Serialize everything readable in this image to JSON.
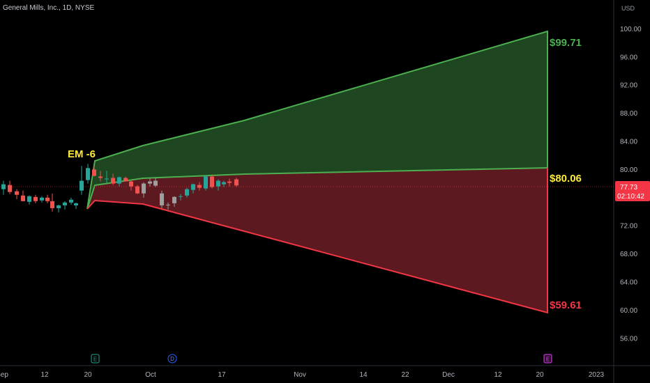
{
  "header": {
    "title": "General Mills, Inc., 1D, NYSE",
    "currency": "USD"
  },
  "price_label": {
    "value": "77.73",
    "countdown": "02:10:42",
    "color": "#f23645"
  },
  "annotations": {
    "em": "EM -6",
    "upper": "$99.71",
    "middle": "$80.06",
    "lower": "$59.61"
  },
  "colors": {
    "upper_zone": "#1e4620",
    "upper_line": "#4caf50",
    "lower_zone": "#5c1a20",
    "lower_line": "#f23645",
    "mid_label": "#ffeb3b",
    "up_candle": "#26a69a",
    "down_candle": "#ef5350",
    "flat_candle": "#9e9e9e"
  },
  "chart_data": {
    "type": "candlestick",
    "title": "General Mills, Inc., 1D, NYSE",
    "ylabel": "USD",
    "ylim": [
      52,
      104
    ],
    "y_ticks": [
      "100.00",
      "96.00",
      "92.00",
      "88.00",
      "84.00",
      "80.00",
      "76.00",
      "72.00",
      "68.00",
      "64.00",
      "60.00",
      "56.00"
    ],
    "x_ticks": [
      "Sep",
      "12",
      "20",
      "Oct",
      "17",
      "Nov",
      "14",
      "22",
      "Dec",
      "12",
      "20",
      "2023"
    ],
    "events": [
      "E",
      "D",
      "E"
    ],
    "last_price": 77.73,
    "candles": [
      {
        "o": 77.2,
        "h": 78.4,
        "l": 76.4,
        "c": 77.9
      },
      {
        "o": 77.8,
        "h": 78.4,
        "l": 76.5,
        "c": 76.8
      },
      {
        "o": 76.9,
        "h": 77.2,
        "l": 75.8,
        "c": 76.4
      },
      {
        "o": 76.3,
        "h": 77.0,
        "l": 75.5,
        "c": 75.5
      },
      {
        "o": 75.4,
        "h": 76.3,
        "l": 75.0,
        "c": 76.2
      },
      {
        "o": 76.1,
        "h": 76.4,
        "l": 75.2,
        "c": 75.5
      },
      {
        "o": 75.6,
        "h": 76.2,
        "l": 75.3,
        "c": 76.0
      },
      {
        "o": 76.0,
        "h": 76.4,
        "l": 75.2,
        "c": 75.5
      },
      {
        "o": 75.5,
        "h": 76.6,
        "l": 74.0,
        "c": 74.5
      },
      {
        "o": 74.5,
        "h": 75.0,
        "l": 73.9,
        "c": 74.9
      },
      {
        "o": 74.9,
        "h": 75.5,
        "l": 74.3,
        "c": 75.3
      },
      {
        "o": 75.3,
        "h": 76.0,
        "l": 75.0,
        "c": 75.7
      },
      {
        "o": 74.9,
        "h": 75.3,
        "l": 74.4,
        "c": 75.2
      },
      {
        "o": 77.0,
        "h": 80.5,
        "l": 76.4,
        "c": 78.4
      },
      {
        "o": 78.5,
        "h": 80.8,
        "l": 78.0,
        "c": 80.2
      },
      {
        "o": 80.0,
        "h": 80.5,
        "l": 79.0,
        "c": 79.1
      },
      {
        "o": 79.0,
        "h": 79.8,
        "l": 78.3,
        "c": 78.8
      },
      {
        "o": 78.7,
        "h": 79.8,
        "l": 78.1,
        "c": 78.7
      },
      {
        "o": 78.8,
        "h": 79.4,
        "l": 77.8,
        "c": 78.0
      },
      {
        "o": 78.0,
        "h": 79.0,
        "l": 77.6,
        "c": 78.9
      },
      {
        "o": 78.8,
        "h": 79.0,
        "l": 78.3,
        "c": 78.3
      },
      {
        "o": 78.3,
        "h": 78.5,
        "l": 77.0,
        "c": 77.6
      },
      {
        "o": 77.6,
        "h": 77.8,
        "l": 76.5,
        "c": 76.6
      },
      {
        "o": 76.6,
        "h": 78.2,
        "l": 76.0,
        "c": 78.0
      },
      {
        "o": 78.0,
        "h": 78.7,
        "l": 77.6,
        "c": 78.3
      },
      {
        "o": 78.4,
        "h": 78.8,
        "l": 77.5,
        "c": 77.7
      },
      {
        "o": 76.6,
        "h": 77.0,
        "l": 74.5,
        "c": 74.9
      },
      {
        "o": 74.9,
        "h": 75.3,
        "l": 74.3,
        "c": 75.0
      },
      {
        "o": 75.2,
        "h": 76.2,
        "l": 74.7,
        "c": 76.1
      },
      {
        "o": 76.2,
        "h": 76.5,
        "l": 75.6,
        "c": 76.2
      },
      {
        "o": 76.3,
        "h": 77.4,
        "l": 76.0,
        "c": 77.2
      },
      {
        "o": 77.1,
        "h": 78.0,
        "l": 76.6,
        "c": 77.9
      },
      {
        "o": 77.8,
        "h": 78.2,
        "l": 77.0,
        "c": 77.4
      },
      {
        "o": 77.3,
        "h": 79.2,
        "l": 77.0,
        "c": 79.0
      },
      {
        "o": 79.0,
        "h": 79.3,
        "l": 77.3,
        "c": 77.5
      },
      {
        "o": 77.6,
        "h": 78.6,
        "l": 77.0,
        "c": 78.4
      },
      {
        "o": 77.9,
        "h": 78.4,
        "l": 77.5,
        "c": 78.2
      },
      {
        "o": 78.3,
        "h": 78.7,
        "l": 77.6,
        "c": 78.1
      },
      {
        "o": 78.6,
        "h": 78.8,
        "l": 77.5,
        "c": 77.73
      }
    ],
    "expected_move": {
      "upper_target": 99.71,
      "middle_target": 80.06,
      "lower_target": 59.61
    }
  }
}
